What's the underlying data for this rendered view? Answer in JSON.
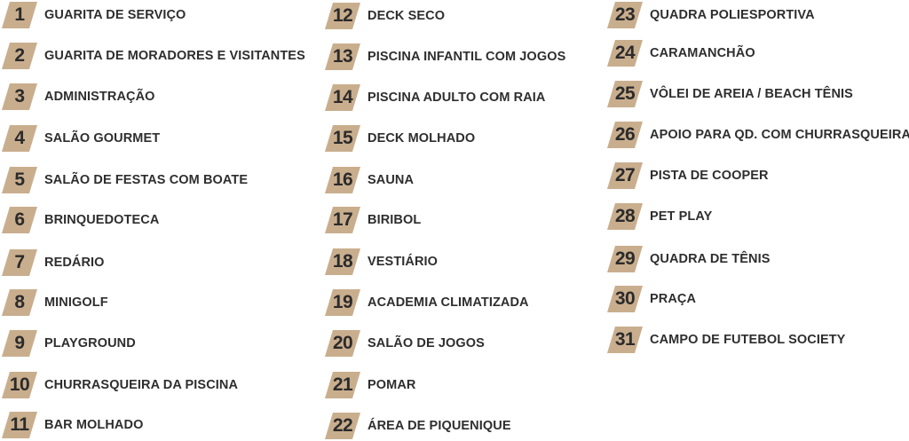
{
  "colors": {
    "badge": "#c9ae8e",
    "text": "#2e2e2e"
  },
  "columns": [
    {
      "items": [
        {
          "number": "1",
          "label": "GUARITA DE SERVIÇO"
        },
        {
          "number": "2",
          "label": "GUARITA DE MORADORES E VISITANTES"
        },
        {
          "number": "3",
          "label": "ADMINISTRAÇÃO"
        },
        {
          "number": "4",
          "label": "SALÃO GOURMET"
        },
        {
          "number": "5",
          "label": "SALÃO DE FESTAS  COM BOATE"
        },
        {
          "number": "6",
          "label": "BRINQUEDOTECA"
        },
        {
          "number": "7",
          "label": "REDÁRIO"
        },
        {
          "number": "8",
          "label": "MINIGOLF"
        },
        {
          "number": "9",
          "label": "PLAYGROUND"
        },
        {
          "number": "10",
          "label": "CHURRASQUEIRA DA PISCINA"
        },
        {
          "number": "11",
          "label": "BAR MOLHADO"
        }
      ]
    },
    {
      "items": [
        {
          "number": "12",
          "label": "DECK SECO"
        },
        {
          "number": "13",
          "label": "PISCINA INFANTIL COM JOGOS"
        },
        {
          "number": "14",
          "label": "PISCINA ADULTO COM RAIA"
        },
        {
          "number": "15",
          "label": "DECK MOLHADO"
        },
        {
          "number": "16",
          "label": "SAUNA"
        },
        {
          "number": "17",
          "label": "BIRIBOL"
        },
        {
          "number": "18",
          "label": "VESTIÁRIO"
        },
        {
          "number": "19",
          "label": "ACADEMIA CLIMATIZADA"
        },
        {
          "number": "20",
          "label": "SALÃO DE JOGOS"
        },
        {
          "number": "21",
          "label": "POMAR"
        },
        {
          "number": "22",
          "label": "ÁREA DE PIQUENIQUE"
        }
      ]
    },
    {
      "items": [
        {
          "number": "23",
          "label": "QUADRA POLIESPORTIVA"
        },
        {
          "number": "24",
          "label": "CARAMANCHÃO"
        },
        {
          "number": "25",
          "label": "VÔLEI DE AREIA / BEACH TÊNIS"
        },
        {
          "number": "26",
          "label": "APOIO PARA QD. COM CHURRASQUEIRA"
        },
        {
          "number": "27",
          "label": "PISTA DE COOPER"
        },
        {
          "number": "28",
          "label": "PET PLAY"
        },
        {
          "number": "29",
          "label": "QUADRA DE TÊNIS"
        },
        {
          "number": "30",
          "label": "PRAÇA"
        },
        {
          "number": "31",
          "label": "CAMPO DE FUTEBOL SOCIETY"
        }
      ]
    }
  ]
}
